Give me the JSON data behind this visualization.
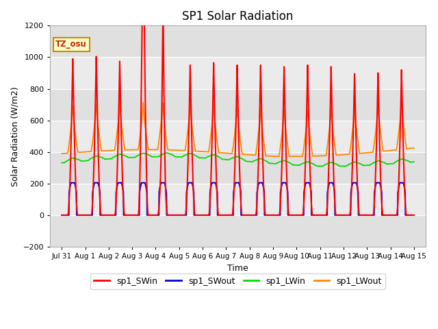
{
  "title": "SP1 Solar Radiation",
  "xlabel": "Time",
  "ylabel": "Solar Radiation (W/m2)",
  "ylim": [
    -200,
    1200
  ],
  "yticks": [
    -200,
    0,
    200,
    400,
    600,
    800,
    1000,
    1200
  ],
  "tz_label": "TZ_osu",
  "line_colors": {
    "SWin": "#ff0000",
    "SWout": "#0000dd",
    "LWin": "#00dd00",
    "LWout": "#ff8800"
  },
  "legend_labels": [
    "sp1_SWin",
    "sp1_SWout",
    "sp1_LWin",
    "sp1_LWout"
  ],
  "plot_bg": "#e8e8e8",
  "band_light": "#ebebeb",
  "band_dark": "#d8d8d8",
  "dt_hours": 0.25
}
